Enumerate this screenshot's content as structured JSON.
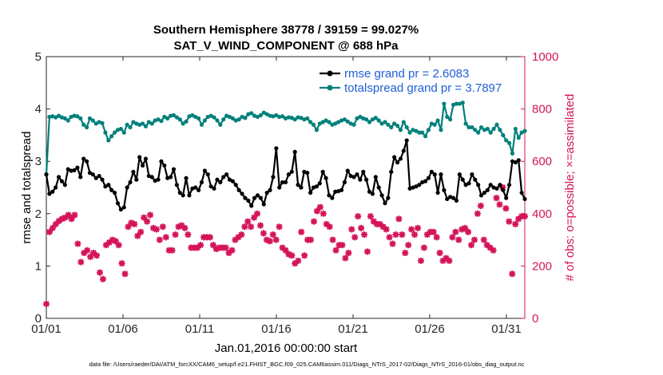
{
  "chart_data": {
    "type": "line",
    "title": "Southern Hemisphere 38778 / 39159 = 99.027%",
    "subtitle": "SAT_V_WIND_COMPONENT @ 688 hPa",
    "xlabel": "Jan.01,2016 00:00:00 start",
    "ylabel_left": "rmse and totalspread",
    "ylabel_right": "# of obs: o=possible; ×=assimilated",
    "xlim": [
      1,
      32.2
    ],
    "ylim_left": [
      0,
      5
    ],
    "ylim_right": [
      0,
      1000
    ],
    "xticks": [
      1,
      6,
      11,
      16,
      21,
      26,
      31
    ],
    "xtick_labels": [
      "01/01",
      "01/06",
      "01/11",
      "01/16",
      "01/21",
      "01/26",
      "01/31"
    ],
    "yticks_left": [
      "0",
      "1",
      "2",
      "3",
      "4",
      "5"
    ],
    "yticks_right": [
      "0",
      "200",
      "400",
      "600",
      "800",
      "1000"
    ],
    "colors": {
      "rmse": "#000000",
      "totalspread": "#00807a",
      "obs": "#d4145a",
      "legend_text": "#1f5fd6"
    },
    "legend_location": "top-right",
    "series": [
      {
        "name": "rmse grand pr = 2.6083",
        "axis": "left",
        "values": [
          2.75,
          2.38,
          2.42,
          2.5,
          2.7,
          2.62,
          2.55,
          2.85,
          2.82,
          2.83,
          2.88,
          2.7,
          3.05,
          3.0,
          2.78,
          2.75,
          2.68,
          2.72,
          2.65,
          2.52,
          2.55,
          2.45,
          2.4,
          2.2,
          2.08,
          2.12,
          2.5,
          2.6,
          2.8,
          2.65,
          3.08,
          2.92,
          3.05,
          2.72,
          2.7,
          2.63,
          2.65,
          3.0,
          2.92,
          2.68,
          2.7,
          2.85,
          2.55,
          2.4,
          2.35,
          2.68,
          2.35,
          2.48,
          2.5,
          2.45,
          2.6,
          2.82,
          2.75,
          2.52,
          2.48,
          2.65,
          2.6,
          2.7,
          2.75,
          2.65,
          2.62,
          2.55,
          2.45,
          2.38,
          2.3,
          2.25,
          2.15,
          2.3,
          2.35,
          2.3,
          2.18,
          2.4,
          2.45,
          2.7,
          3.25,
          2.5,
          2.6,
          2.6,
          2.75,
          2.8,
          3.18,
          2.55,
          2.5,
          2.8,
          2.78,
          2.4,
          2.5,
          2.52,
          2.58,
          2.8,
          2.68,
          2.35,
          2.3,
          2.42,
          2.43,
          2.45,
          2.6,
          2.82,
          2.72,
          2.7,
          2.75,
          2.65,
          2.8,
          2.65,
          2.42,
          2.38,
          2.7,
          2.5,
          2.35,
          2.2,
          2.3,
          2.8,
          3.08,
          2.98,
          3.05,
          3.2,
          3.4,
          2.48,
          2.5,
          2.52,
          2.55,
          2.6,
          2.62,
          2.68,
          2.8,
          2.75,
          2.4,
          2.75,
          2.45,
          2.28,
          2.32,
          2.3,
          2.25,
          2.75,
          2.65,
          2.55,
          2.58,
          2.75,
          2.65,
          2.55,
          2.35,
          2.4,
          2.45,
          2.55,
          2.5,
          2.48,
          2.55,
          2.45,
          2.3,
          2.55,
          3.0,
          2.98,
          3.02,
          2.4,
          2.28
        ]
      },
      {
        "name": "totalspread grand pr = 3.7897",
        "axis": "left",
        "values": [
          2.75,
          3.85,
          3.86,
          3.84,
          3.87,
          3.84,
          3.82,
          3.78,
          3.85,
          3.87,
          3.86,
          3.82,
          3.7,
          3.65,
          3.82,
          3.78,
          3.72,
          3.75,
          3.73,
          3.55,
          3.4,
          3.48,
          3.55,
          3.6,
          3.62,
          3.55,
          3.7,
          3.65,
          3.75,
          3.72,
          3.7,
          3.72,
          3.67,
          3.75,
          3.72,
          3.78,
          3.8,
          3.77,
          3.85,
          3.82,
          3.87,
          3.88,
          3.84,
          3.8,
          3.72,
          3.76,
          3.86,
          3.88,
          3.85,
          3.82,
          3.7,
          3.78,
          3.85,
          3.87,
          3.84,
          3.78,
          3.7,
          3.8,
          3.87,
          3.85,
          3.82,
          3.78,
          3.8,
          3.85,
          3.83,
          3.9,
          3.92,
          3.87,
          3.85,
          3.88,
          3.93,
          3.9,
          3.87,
          3.86,
          3.88,
          3.85,
          3.86,
          3.82,
          3.84,
          3.83,
          3.8,
          3.84,
          3.83,
          3.8,
          3.82,
          3.75,
          3.7,
          3.6,
          3.72,
          3.75,
          3.78,
          3.75,
          3.7,
          3.72,
          3.75,
          3.78,
          3.8,
          3.76,
          3.72,
          3.7,
          3.82,
          3.85,
          3.82,
          3.8,
          3.75,
          3.8,
          3.83,
          3.78,
          3.72,
          3.75,
          3.7,
          3.65,
          3.72,
          3.68,
          3.6,
          3.75,
          3.65,
          3.55,
          3.6,
          3.58,
          3.55,
          3.55,
          3.48,
          3.6,
          3.72,
          3.7,
          3.78,
          3.6,
          4.1,
          3.85,
          3.8,
          4.08,
          4.1,
          4.1,
          4.12,
          3.72,
          3.65,
          3.65,
          3.6,
          3.55,
          3.65,
          3.6,
          3.62,
          3.55,
          3.62,
          3.7,
          3.6,
          3.5,
          3.4,
          3.35,
          3.15,
          3.62,
          3.45,
          3.55,
          3.58
        ]
      },
      {
        "name": "# of obs assimilated",
        "axis": "right",
        "marker": "x",
        "values": [
          55,
          330,
          345,
          360,
          372,
          380,
          385,
          395,
          380,
          395,
          285,
          215,
          250,
          260,
          235,
          250,
          240,
          175,
          150,
          280,
          290,
          300,
          295,
          280,
          210,
          170,
          350,
          365,
          360,
          315,
          330,
          385,
          370,
          395,
          345,
          340,
          300,
          350,
          310,
          260,
          260,
          320,
          350,
          355,
          345,
          320,
          270,
          270,
          270,
          280,
          310,
          310,
          310,
          280,
          265,
          270,
          270,
          270,
          250,
          260,
          300,
          310,
          320,
          350,
          370,
          350,
          385,
          400,
          355,
          325,
          300,
          295,
          320,
          300,
          350,
          270,
          260,
          245,
          240,
          210,
          220,
          330,
          240,
          300,
          300,
          370,
          410,
          425,
          400,
          360,
          350,
          300,
          260,
          280,
          280,
          230,
          250,
          340,
          310,
          390,
          345,
          320,
          255,
          390,
          370,
          360,
          360,
          350,
          340,
          310,
          285,
          320,
          380,
          320,
          250,
          280,
          340,
          320,
          345,
          220,
          270,
          320,
          330,
          330,
          310,
          250,
          220,
          230,
          220,
          310,
          330,
          300,
          340,
          345,
          330,
          280,
          300,
          400,
          430,
          300,
          280,
          270,
          260,
          460,
          435,
          500,
          420,
          370,
          170,
          360,
          380,
          390,
          390
        ]
      }
    ]
  },
  "footer": {
    "data_file": "data file: /Users/raeder/DAI/ATM_forcXX/CAM6_setup/f.e21.FHIST_BGC.f09_025.CAM6assim.011/Diags_NTrS_2017-02/Diags_NTrS_2016-01/obs_diag_output.nc"
  }
}
